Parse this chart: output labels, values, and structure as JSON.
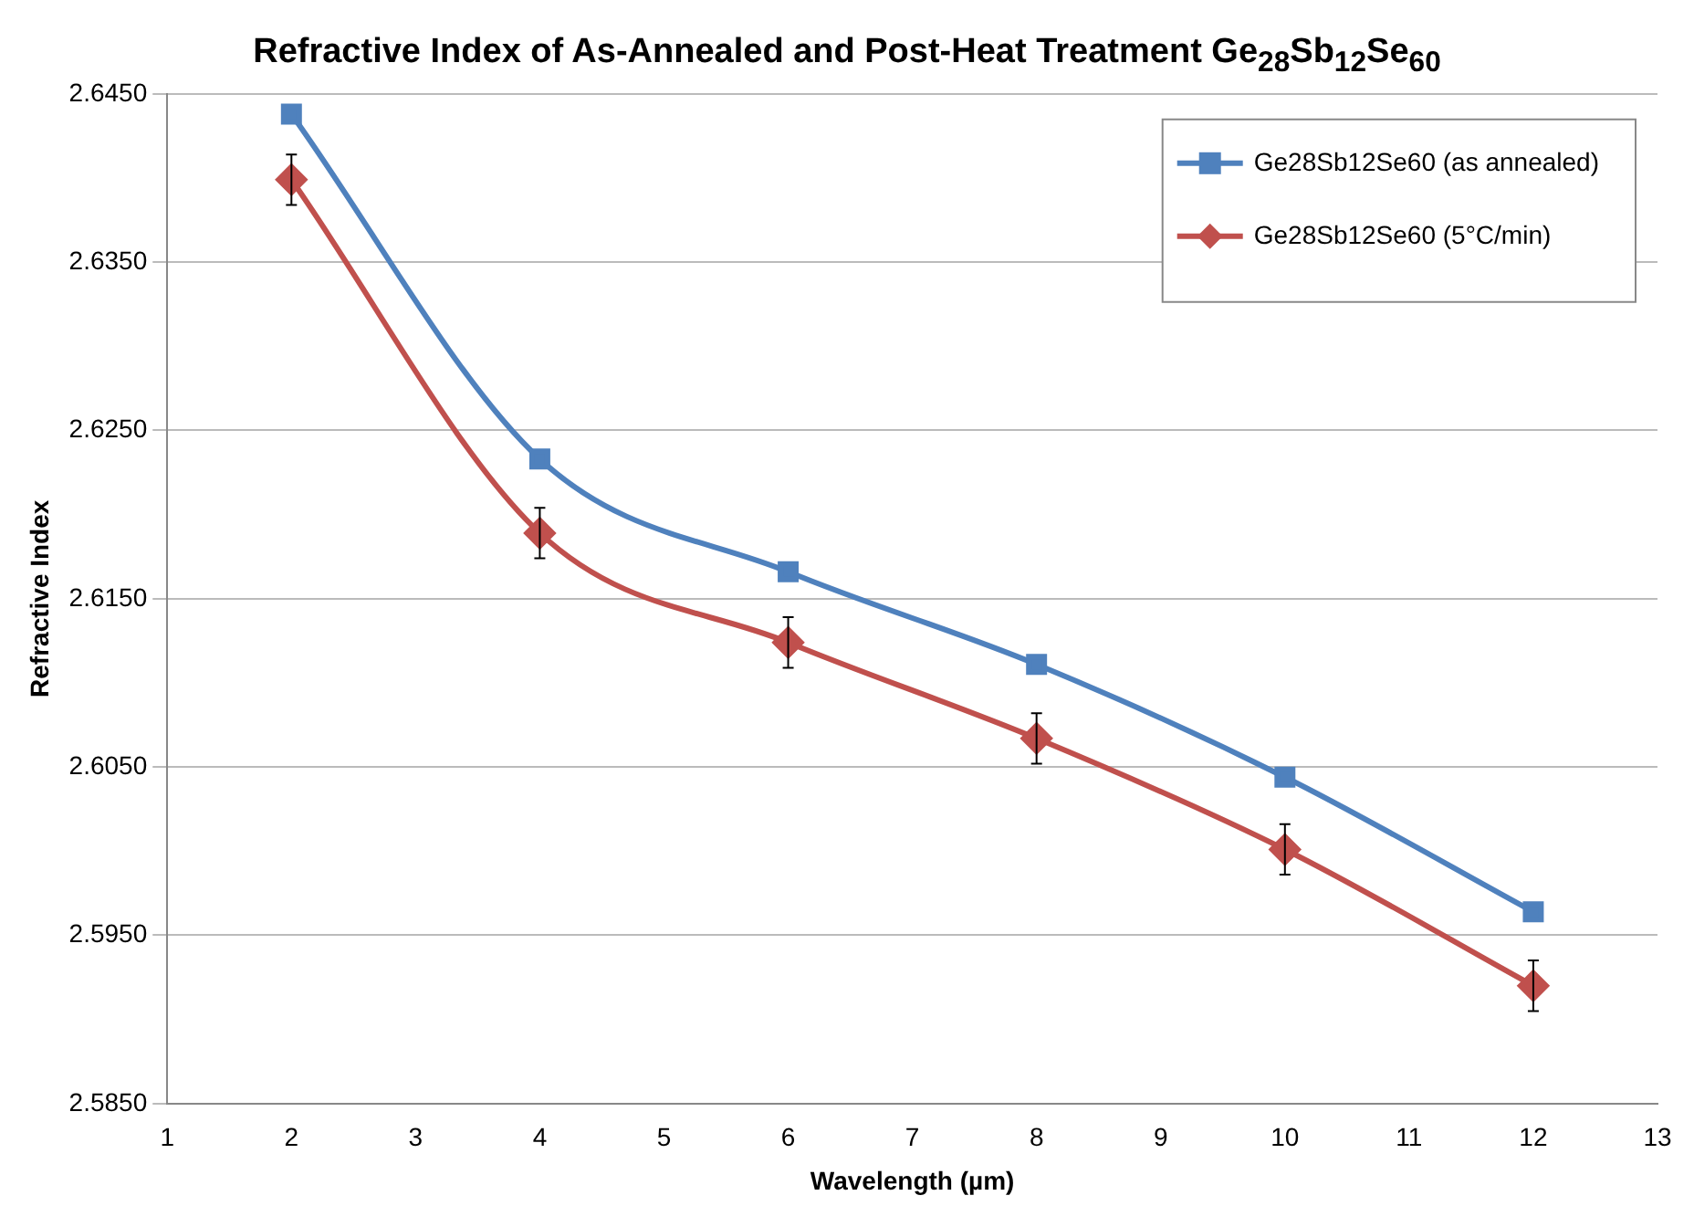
{
  "chart_data": {
    "type": "line",
    "title": "Refractive Index of As-Annealed and Post-Heat Treatment Ge$_{28}$Sb$_{12}$Se$_{60}$",
    "xlabel": "Wavelength (µm)",
    "ylabel": "Refractive Index",
    "x": [
      2,
      4,
      6,
      8,
      10,
      12
    ],
    "series": [
      {
        "name": "Ge28Sb12Se60 (as annealed)",
        "color": "#4f81bd",
        "marker": "square",
        "values": [
          2.6438,
          2.6233,
          2.6166,
          2.6111,
          2.6044,
          2.5964
        ]
      },
      {
        "name": "Ge28Sb12Se60 (5°C/min)",
        "color": "#c0504d",
        "marker": "diamond",
        "values": [
          2.6399,
          2.6189,
          2.6124,
          2.6067,
          2.6001,
          2.592
        ],
        "errors": [
          0.0015,
          0.0015,
          0.0015,
          0.0015,
          0.0015,
          0.0015
        ]
      }
    ],
    "xlim": [
      1,
      13
    ],
    "xticks": [
      1,
      2,
      3,
      4,
      5,
      6,
      7,
      8,
      9,
      10,
      11,
      12,
      13
    ],
    "ylim": [
      2.585,
      2.645
    ],
    "yticks": [
      {
        "value": 2.585,
        "label": "2.5850"
      },
      {
        "value": 2.595,
        "label": "2.5950"
      },
      {
        "value": 2.605,
        "label": "2.6050"
      },
      {
        "value": 2.615,
        "label": "2.6150"
      },
      {
        "value": 2.625,
        "label": "2.6250"
      },
      {
        "value": 2.635,
        "label": "2.6350"
      },
      {
        "value": 2.645,
        "label": "2.6450"
      }
    ],
    "grid": "y",
    "legend": "top right"
  }
}
